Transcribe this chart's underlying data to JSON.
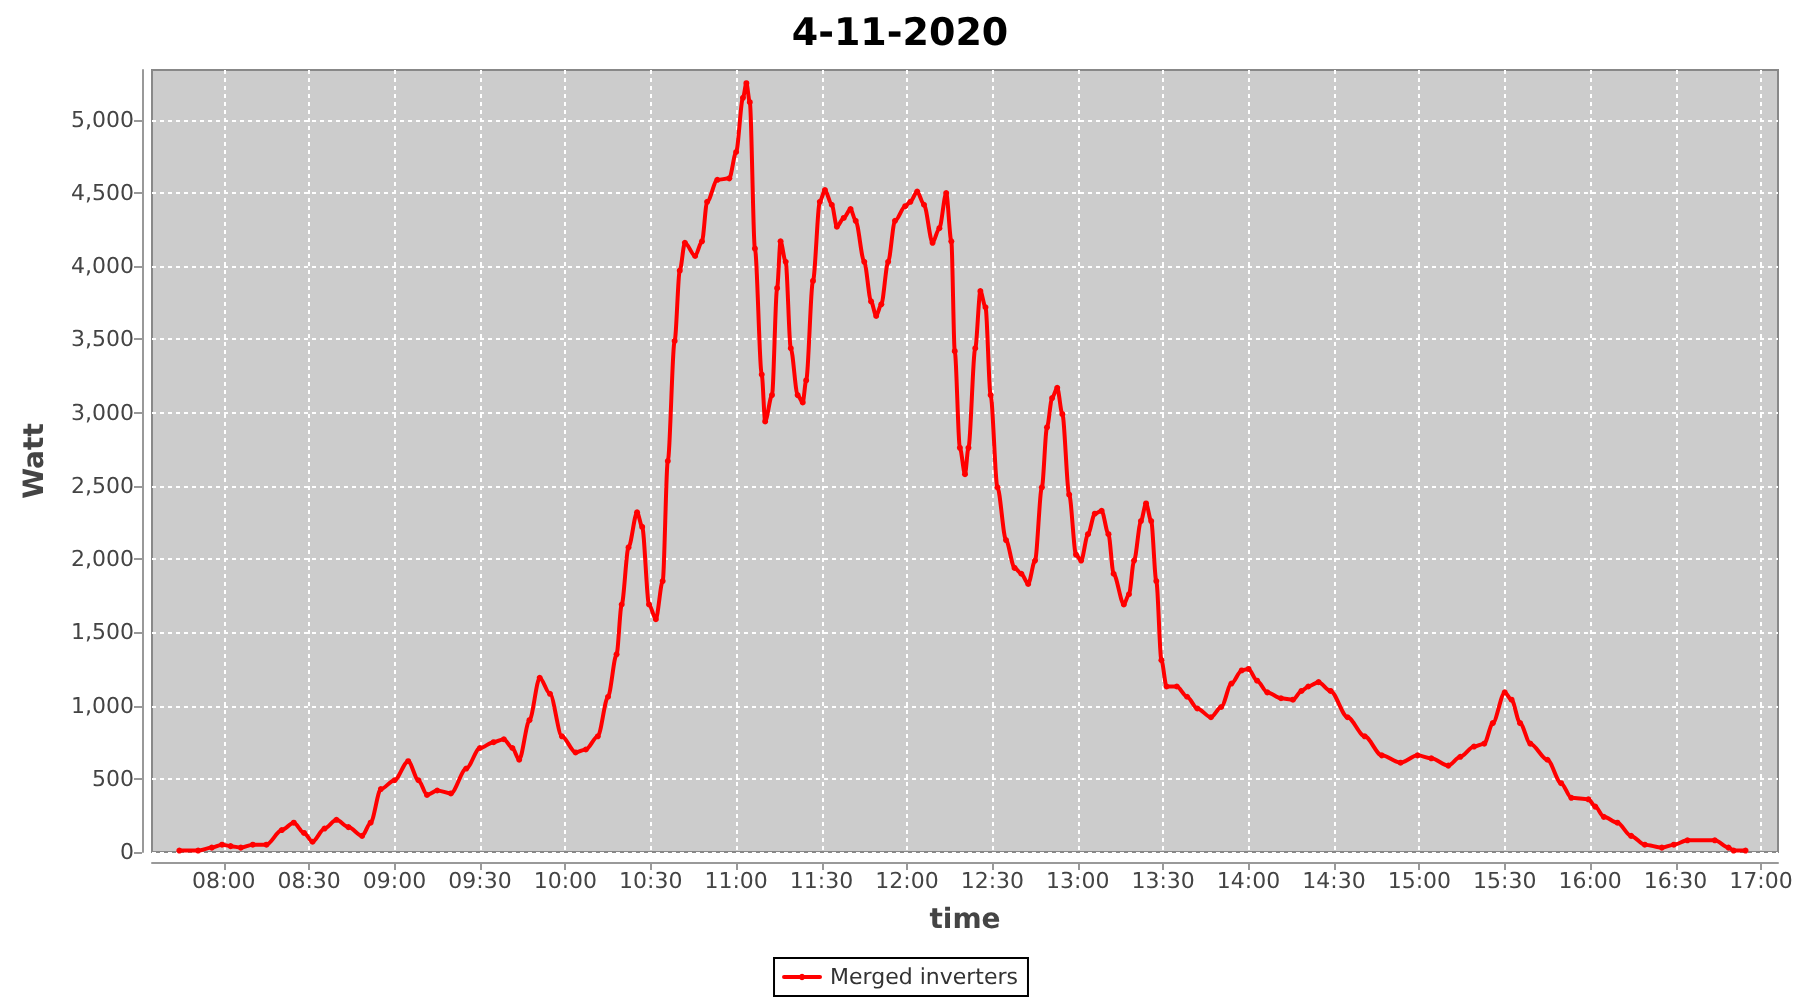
{
  "chart_data": {
    "type": "line",
    "title": "4-11-2020",
    "xlabel": "time",
    "ylabel": "Watt",
    "x": [
      7.74,
      7.85,
      7.93,
      7.99,
      8.04,
      8.1,
      8.17,
      8.25,
      8.34,
      8.41,
      8.47,
      8.52,
      8.59,
      8.66,
      8.73,
      8.81,
      8.86,
      8.92,
      9.0,
      9.08,
      9.14,
      9.19,
      9.25,
      9.33,
      9.42,
      9.5,
      9.58,
      9.64,
      9.69,
      9.73,
      9.79,
      9.85,
      9.91,
      9.98,
      10.06,
      10.12,
      10.19,
      10.25,
      10.3,
      10.33,
      10.37,
      10.42,
      10.45,
      10.49,
      10.53,
      10.57,
      10.6,
      10.64,
      10.67,
      10.7,
      10.76,
      10.8,
      10.83,
      10.89,
      10.96,
      11.0,
      11.04,
      11.06,
      11.08,
      11.11,
      11.15,
      11.17,
      11.21,
      11.24,
      11.26,
      11.29,
      11.32,
      11.36,
      11.39,
      11.41,
      11.45,
      11.49,
      11.52,
      11.56,
      11.59,
      11.63,
      11.67,
      11.7,
      11.75,
      11.79,
      11.82,
      11.85,
      11.89,
      11.93,
      11.99,
      12.02,
      12.06,
      12.1,
      12.15,
      12.19,
      12.23,
      12.26,
      12.28,
      12.31,
      12.34,
      12.36,
      12.4,
      12.43,
      12.46,
      12.49,
      12.53,
      12.58,
      12.63,
      12.67,
      12.71,
      12.75,
      12.79,
      12.82,
      12.85,
      12.88,
      12.91,
      12.95,
      12.99,
      13.02,
      13.06,
      13.1,
      13.14,
      13.18,
      13.21,
      13.27,
      13.3,
      13.33,
      13.37,
      13.4,
      13.43,
      13.46,
      13.49,
      13.52,
      13.58,
      13.64,
      13.7,
      13.78,
      13.84,
      13.9,
      13.96,
      14.0,
      14.05,
      14.11,
      14.19,
      14.26,
      14.31,
      14.35,
      14.41,
      14.48,
      14.58,
      14.68,
      14.78,
      14.89,
      14.99,
      15.07,
      15.17,
      15.24,
      15.32,
      15.38,
      15.43,
      15.5,
      15.54,
      15.59,
      15.65,
      15.75,
      15.83,
      15.89,
      15.99,
      16.03,
      16.08,
      16.16,
      16.24,
      16.32,
      16.42,
      16.49,
      16.57,
      16.73,
      16.81,
      16.84,
      16.91
    ],
    "series": [
      {
        "name": "Merged inverters",
        "color": "#ff0000",
        "values": [
          10,
          10,
          30,
          50,
          40,
          30,
          50,
          50,
          150,
          200,
          130,
          70,
          160,
          220,
          170,
          110,
          200,
          430,
          490,
          620,
          490,
          390,
          420,
          400,
          570,
          710,
          750,
          770,
          710,
          630,
          900,
          1190,
          1080,
          790,
          680,
          700,
          790,
          1060,
          1350,
          1690,
          2080,
          2320,
          2220,
          1690,
          1590,
          1850,
          2670,
          3490,
          3970,
          4160,
          4070,
          4170,
          4440,
          4590,
          4600,
          4780,
          5150,
          5250,
          5120,
          4120,
          3260,
          2940,
          3120,
          3850,
          4170,
          4030,
          3440,
          3120,
          3070,
          3220,
          3900,
          4440,
          4520,
          4420,
          4270,
          4330,
          4390,
          4310,
          4030,
          3760,
          3660,
          3740,
          4030,
          4310,
          4410,
          4440,
          4510,
          4420,
          4160,
          4260,
          4500,
          4170,
          3420,
          2760,
          2580,
          2760,
          3440,
          3830,
          3720,
          3120,
          2490,
          2130,
          1940,
          1900,
          1830,
          1990,
          2490,
          2900,
          3100,
          3170,
          2990,
          2440,
          2030,
          1990,
          2170,
          2310,
          2330,
          2170,
          1900,
          1690,
          1760,
          1990,
          2260,
          2380,
          2260,
          1850,
          1310,
          1130,
          1130,
          1060,
          980,
          920,
          990,
          1150,
          1240,
          1250,
          1170,
          1090,
          1050,
          1040,
          1100,
          1130,
          1160,
          1100,
          920,
          790,
          660,
          610,
          660,
          640,
          590,
          650,
          720,
          740,
          880,
          1090,
          1040,
          880,
          740,
          630,
          470,
          370,
          360,
          310,
          240,
          200,
          110,
          50,
          30,
          50,
          80,
          80,
          30,
          10,
          10
        ]
      }
    ],
    "xlim": [
      7.58,
      17.1
    ],
    "xticks": [
      {
        "value": 8,
        "label": "08:00"
      },
      {
        "value": 8.5,
        "label": "08:30"
      },
      {
        "value": 9,
        "label": "09:00"
      },
      {
        "value": 9.5,
        "label": "09:30"
      },
      {
        "value": 10,
        "label": "10:00"
      },
      {
        "value": 10.5,
        "label": "10:30"
      },
      {
        "value": 11,
        "label": "11:00"
      },
      {
        "value": 11.5,
        "label": "11:30"
      },
      {
        "value": 12,
        "label": "12:00"
      },
      {
        "value": 12.5,
        "label": "12:30"
      },
      {
        "value": 13,
        "label": "13:00"
      },
      {
        "value": 13.5,
        "label": "13:30"
      },
      {
        "value": 14,
        "label": "14:00"
      },
      {
        "value": 14.5,
        "label": "14:30"
      },
      {
        "value": 15,
        "label": "15:00"
      },
      {
        "value": 15.5,
        "label": "15:30"
      },
      {
        "value": 16,
        "label": "16:00"
      },
      {
        "value": 16.5,
        "label": "16:30"
      },
      {
        "value": 17,
        "label": "17:00"
      }
    ],
    "ylim": [
      0,
      5340
    ],
    "yticks": [
      0,
      500,
      {
        "value": 1000,
        "label": "1,000"
      },
      {
        "value": 1500,
        "label": "1,500"
      },
      {
        "value": 2000,
        "label": "2,000"
      },
      {
        "value": 2500,
        "label": "2,500"
      },
      {
        "value": 3000,
        "label": "3,000"
      },
      {
        "value": 3500,
        "label": "3,500"
      },
      {
        "value": 4000,
        "label": "4,000"
      },
      {
        "value": 4500,
        "label": "4,500"
      },
      {
        "value": 5000,
        "label": "5,000"
      }
    ],
    "grid": true,
    "legend": "bottom",
    "marker": "circle",
    "line_style": "solid"
  }
}
